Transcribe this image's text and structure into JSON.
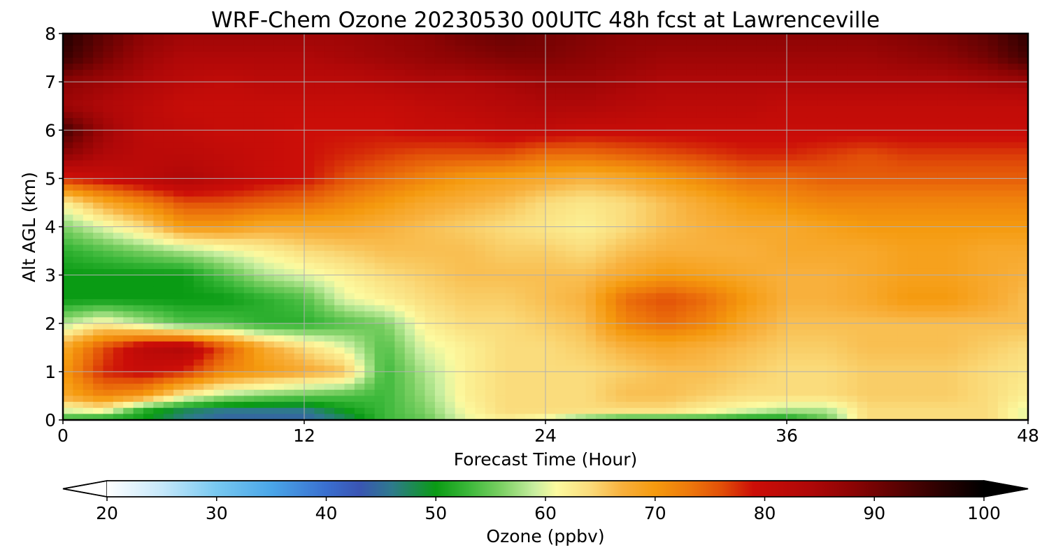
{
  "chart_data": {
    "type": "heatmap",
    "title": "WRF-Chem Ozone  20230530 00UTC 48h fcst at Lawrenceville",
    "xlabel": "Forecast Time (Hour)",
    "ylabel": "Alt AGL (km)",
    "xlim": [
      0,
      48
    ],
    "ylim": [
      0,
      8
    ],
    "xticks": [
      0,
      12,
      24,
      36,
      48
    ],
    "yticks": [
      0,
      1,
      2,
      3,
      4,
      5,
      6,
      7,
      8
    ],
    "grid": true,
    "x": [
      0,
      2,
      4,
      6,
      8,
      10,
      12,
      14,
      16,
      18,
      20,
      22,
      24,
      26,
      28,
      30,
      32,
      34,
      36,
      38,
      40,
      42,
      44,
      46,
      48
    ],
    "y": [
      0,
      0.2,
      0.5,
      1.0,
      1.5,
      2.0,
      2.5,
      3.0,
      3.5,
      4.0,
      4.5,
      5.0,
      5.5,
      6.0,
      6.5,
      7.0,
      7.5,
      8.0
    ],
    "z": [
      [
        52,
        50,
        50,
        46,
        44,
        44,
        44,
        47,
        53,
        55,
        60,
        62,
        60,
        55,
        52,
        52,
        52,
        50,
        50,
        55,
        64,
        64,
        64,
        64,
        60
      ],
      [
        60,
        62,
        52,
        48,
        46,
        46,
        46,
        50,
        53,
        56,
        61,
        64,
        64,
        64,
        64,
        64,
        62,
        60,
        58,
        58,
        64,
        64,
        64,
        64,
        60
      ],
      [
        68,
        72,
        70,
        62,
        58,
        56,
        55,
        54,
        53,
        57,
        62,
        64,
        64,
        64,
        66,
        66,
        65,
        64,
        64,
        64,
        65,
        65,
        65,
        64,
        62
      ],
      [
        70,
        78,
        80,
        78,
        72,
        70,
        68,
        66,
        53,
        58,
        62,
        64,
        64,
        64,
        65,
        66,
        66,
        65,
        64,
        64,
        65,
        65,
        65,
        64,
        63
      ],
      [
        68,
        76,
        82,
        84,
        76,
        68,
        64,
        60,
        54,
        60,
        62,
        64,
        64,
        65,
        67,
        68,
        67,
        66,
        65,
        65,
        66,
        66,
        66,
        65,
        64
      ],
      [
        58,
        62,
        58,
        54,
        54,
        52,
        52,
        54,
        56,
        62,
        64,
        64,
        65,
        66,
        72,
        74,
        72,
        68,
        66,
        66,
        66,
        66,
        66,
        66,
        66
      ],
      [
        50,
        50,
        50,
        50,
        50,
        52,
        54,
        60,
        62,
        64,
        65,
        65,
        66,
        67,
        74,
        76,
        74,
        70,
        67,
        67,
        68,
        70,
        70,
        68,
        66
      ],
      [
        50,
        50,
        50,
        50,
        54,
        58,
        60,
        62,
        64,
        65,
        66,
        66,
        66,
        66,
        68,
        70,
        69,
        68,
        67,
        67,
        68,
        69,
        69,
        68,
        67
      ],
      [
        52,
        54,
        56,
        58,
        60,
        62,
        64,
        65,
        66,
        66,
        66,
        65,
        65,
        64,
        66,
        67,
        67,
        67,
        68,
        68,
        68,
        69,
        69,
        68,
        68
      ],
      [
        56,
        60,
        64,
        70,
        70,
        68,
        68,
        68,
        67,
        66,
        65,
        64,
        63,
        62,
        64,
        66,
        67,
        68,
        68,
        69,
        70,
        70,
        70,
        70,
        70
      ],
      [
        62,
        68,
        72,
        76,
        76,
        75,
        74,
        72,
        70,
        68,
        67,
        66,
        64,
        63,
        64,
        66,
        68,
        70,
        71,
        72,
        72,
        72,
        72,
        72,
        72
      ],
      [
        78,
        80,
        82,
        84,
        82,
        80,
        79,
        76,
        74,
        72,
        70,
        69,
        68,
        67,
        68,
        70,
        72,
        74,
        74,
        75,
        75,
        75,
        75,
        75,
        75
      ],
      [
        88,
        84,
        82,
        82,
        81,
        80,
        79,
        78,
        77,
        76,
        76,
        76,
        74,
        74,
        75,
        76,
        77,
        78,
        78,
        77,
        76,
        77,
        77,
        77,
        77
      ],
      [
        94,
        86,
        82,
        81,
        80,
        80,
        79,
        79,
        79,
        80,
        80,
        81,
        81,
        80,
        80,
        80,
        80,
        80,
        80,
        80,
        80,
        80,
        80,
        80,
        80
      ],
      [
        86,
        84,
        82,
        80,
        80,
        80,
        80,
        80,
        80,
        81,
        82,
        83,
        84,
        84,
        83,
        82,
        82,
        82,
        81,
        81,
        81,
        81,
        81,
        81,
        81
      ],
      [
        88,
        86,
        84,
        82,
        81,
        82,
        82,
        82,
        83,
        84,
        84,
        85,
        86,
        86,
        85,
        84,
        84,
        84,
        84,
        84,
        84,
        84,
        84,
        85,
        86
      ],
      [
        95,
        90,
        86,
        84,
        84,
        84,
        84,
        85,
        86,
        87,
        88,
        89,
        89,
        88,
        87,
        86,
        86,
        86,
        86,
        86,
        86,
        87,
        88,
        90,
        94
      ],
      [
        97,
        92,
        88,
        86,
        86,
        86,
        86,
        86,
        87,
        88,
        90,
        91,
        90,
        89,
        88,
        88,
        88,
        88,
        88,
        88,
        88,
        89,
        90,
        92,
        96
      ]
    ],
    "colorbar": {
      "label": "Ozone  (ppbv)",
      "min": 20,
      "max": 100,
      "ticks": [
        20,
        30,
        40,
        50,
        60,
        70,
        80,
        90,
        100
      ],
      "extend": "both",
      "stops": [
        {
          "v": 20,
          "c": "#ffffff"
        },
        {
          "v": 25,
          "c": "#c6e8fa"
        },
        {
          "v": 30,
          "c": "#78c8f0"
        },
        {
          "v": 35,
          "c": "#4aa6e8"
        },
        {
          "v": 40,
          "c": "#3a6fcf"
        },
        {
          "v": 43,
          "c": "#3a55b4"
        },
        {
          "v": 46,
          "c": "#2e7a8c"
        },
        {
          "v": 50,
          "c": "#0a9b14"
        },
        {
          "v": 53,
          "c": "#3cb83a"
        },
        {
          "v": 56,
          "c": "#7cd064"
        },
        {
          "v": 59,
          "c": "#c8eea0"
        },
        {
          "v": 61,
          "c": "#fcfaa0"
        },
        {
          "v": 64,
          "c": "#fadc7c"
        },
        {
          "v": 67,
          "c": "#f8b03c"
        },
        {
          "v": 70,
          "c": "#f59a0e"
        },
        {
          "v": 73,
          "c": "#ee7a0c"
        },
        {
          "v": 76,
          "c": "#e25008"
        },
        {
          "v": 79,
          "c": "#cc0e08"
        },
        {
          "v": 84,
          "c": "#b00808"
        },
        {
          "v": 88,
          "c": "#8c0404"
        },
        {
          "v": 92,
          "c": "#5c0202"
        },
        {
          "v": 96,
          "c": "#2c0101"
        },
        {
          "v": 100,
          "c": "#000000"
        }
      ]
    }
  }
}
